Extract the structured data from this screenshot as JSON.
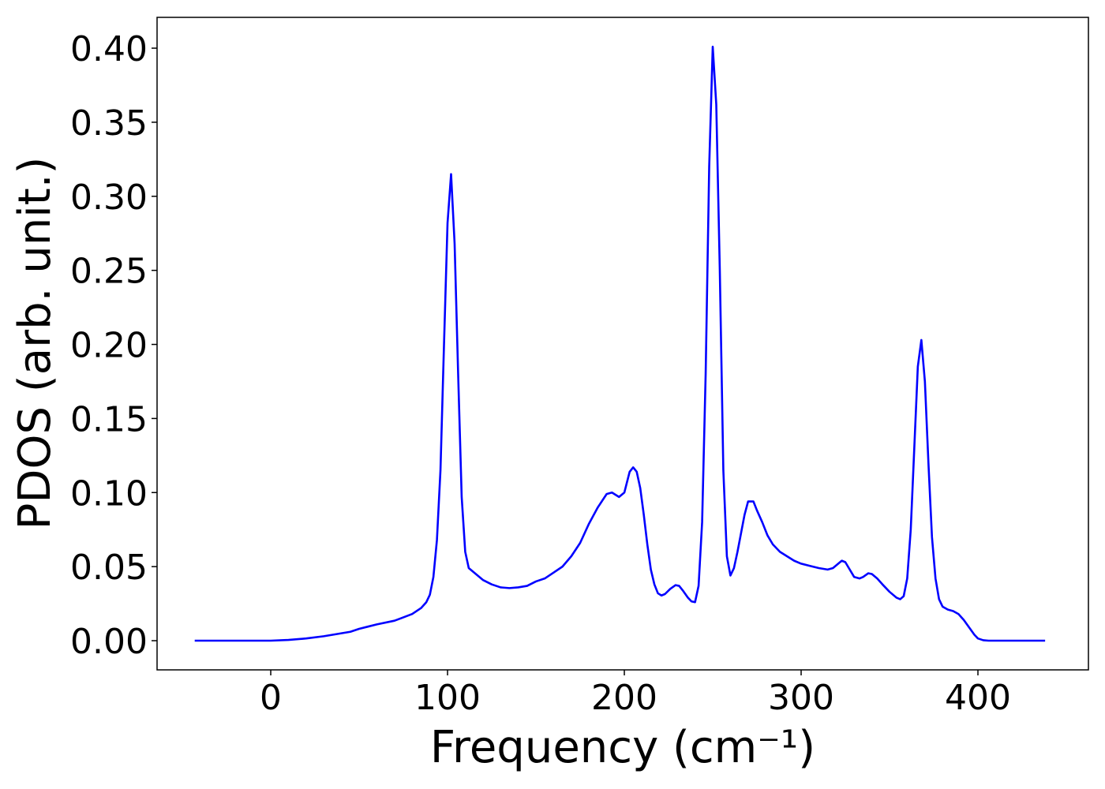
{
  "chart_data": {
    "type": "line",
    "x_label": "Frequency (cm⁻¹)",
    "y_label": "PDOS (arb. unit.)",
    "xlim": [
      -64.3,
      462.5
    ],
    "ylim": [
      -0.0197,
      0.4208
    ],
    "xticks": [
      0,
      100,
      200,
      300,
      400
    ],
    "yticks": [
      {
        "value": 0,
        "label": "0.00"
      },
      0.05,
      {
        "value": 0.1,
        "label": "0.10"
      },
      0.15,
      {
        "value": 0.2,
        "label": "0.20"
      },
      0.25,
      {
        "value": 0.3,
        "label": "0.30"
      },
      0.35,
      {
        "value": 0.4,
        "label": "0.40"
      }
    ],
    "grid": false,
    "x": [
      -43,
      0,
      10,
      20,
      30,
      40,
      45,
      50,
      55,
      60,
      70,
      80,
      85,
      88,
      90,
      92,
      94,
      96,
      98,
      100,
      102,
      104,
      106,
      108,
      110,
      112,
      116,
      120,
      125,
      130,
      135,
      140,
      145,
      150,
      155,
      160,
      165,
      170,
      175,
      180,
      185,
      190,
      193,
      197,
      200,
      203,
      205,
      207,
      209,
      211,
      213,
      215,
      217,
      219,
      221,
      223,
      226,
      229,
      231,
      233,
      236,
      238,
      240,
      242,
      244,
      246,
      248,
      250,
      252,
      254,
      256,
      258,
      260,
      262,
      264,
      268,
      270,
      273,
      275,
      278,
      281,
      284,
      288,
      292,
      296,
      300,
      305,
      310,
      315,
      318,
      321,
      323,
      325,
      327,
      330,
      333,
      335,
      338,
      340,
      343,
      346,
      350,
      354,
      356,
      358,
      360,
      362,
      364,
      366,
      368,
      370,
      372,
      374,
      376,
      378,
      380,
      383,
      386,
      389,
      392,
      395,
      398,
      400,
      403,
      406,
      438
    ],
    "series": [
      {
        "color": "#0000ff",
        "values": [
          0,
          0,
          0.0005,
          0.0015,
          0.003,
          0.005,
          0.006,
          0.008,
          0.0095,
          0.011,
          0.0135,
          0.018,
          0.022,
          0.026,
          0.031,
          0.043,
          0.068,
          0.115,
          0.2,
          0.282,
          0.315,
          0.268,
          0.18,
          0.097,
          0.06,
          0.049,
          0.045,
          0.041,
          0.038,
          0.036,
          0.0355,
          0.036,
          0.037,
          0.04,
          0.042,
          0.046,
          0.05,
          0.057,
          0.066,
          0.079,
          0.09,
          0.099,
          0.1,
          0.097,
          0.1,
          0.114,
          0.117,
          0.114,
          0.103,
          0.085,
          0.065,
          0.048,
          0.038,
          0.032,
          0.0305,
          0.0315,
          0.035,
          0.0375,
          0.037,
          0.034,
          0.029,
          0.0265,
          0.026,
          0.037,
          0.08,
          0.18,
          0.32,
          0.401,
          0.362,
          0.25,
          0.115,
          0.057,
          0.044,
          0.049,
          0.06,
          0.085,
          0.094,
          0.094,
          0.088,
          0.08,
          0.071,
          0.065,
          0.06,
          0.057,
          0.054,
          0.052,
          0.0505,
          0.049,
          0.048,
          0.049,
          0.052,
          0.054,
          0.053,
          0.049,
          0.043,
          0.042,
          0.043,
          0.0455,
          0.045,
          0.042,
          0.038,
          0.033,
          0.029,
          0.028,
          0.03,
          0.042,
          0.075,
          0.13,
          0.185,
          0.203,
          0.175,
          0.12,
          0.07,
          0.042,
          0.028,
          0.023,
          0.021,
          0.02,
          0.018,
          0.014,
          0.009,
          0.004,
          0.0015,
          0.0003,
          0,
          0
        ]
      }
    ]
  }
}
